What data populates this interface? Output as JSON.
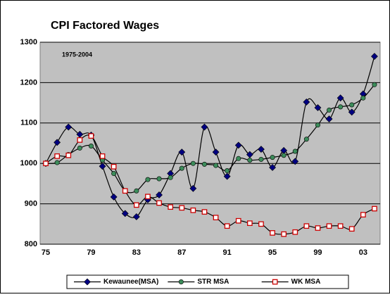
{
  "chart_data": {
    "type": "line",
    "title": "CPI Factored Wages",
    "annotation": "1975-2004",
    "categories": [
      "75",
      null,
      null,
      null,
      "79",
      null,
      null,
      null,
      "83",
      null,
      null,
      null,
      "87",
      null,
      null,
      null,
      "91",
      null,
      null,
      null,
      "95",
      null,
      null,
      null,
      "99",
      null,
      null,
      null,
      "03",
      null
    ],
    "series": [
      {
        "name": "Kewaunee(MSA)",
        "color": "#000080",
        "marker": "diamond",
        "values": [
          1000,
          1052,
          1090,
          1072,
          1070,
          993,
          917,
          876,
          868,
          910,
          922,
          975,
          1028,
          938,
          1090,
          1028,
          968,
          1045,
          1022,
          1035,
          990,
          1032,
          1005,
          1152,
          1138,
          1110,
          1162,
          1127,
          1172,
          1265
        ]
      },
      {
        "name": "STR MSA",
        "color": "#3c8c5a",
        "marker": "circle",
        "values": [
          1000,
          1002,
          1022,
          1038,
          1043,
          1008,
          975,
          932,
          932,
          960,
          962,
          965,
          988,
          1000,
          998,
          995,
          982,
          1012,
          1008,
          1010,
          1015,
          1020,
          1030,
          1060,
          1095,
          1132,
          1140,
          1145,
          1162,
          1195
        ]
      },
      {
        "name": "WK MSA",
        "color": "#cc0000",
        "marker": "square",
        "values": [
          1000,
          1018,
          1020,
          1058,
          1068,
          1018,
          992,
          932,
          897,
          918,
          902,
          892,
          890,
          884,
          880,
          866,
          845,
          858,
          852,
          850,
          828,
          825,
          830,
          845,
          840,
          845,
          845,
          838,
          873,
          888
        ]
      }
    ],
    "ylim": [
      800,
      1300
    ],
    "yticks": [
      800,
      900,
      1000,
      1100,
      1200,
      1300
    ],
    "grid": true
  }
}
